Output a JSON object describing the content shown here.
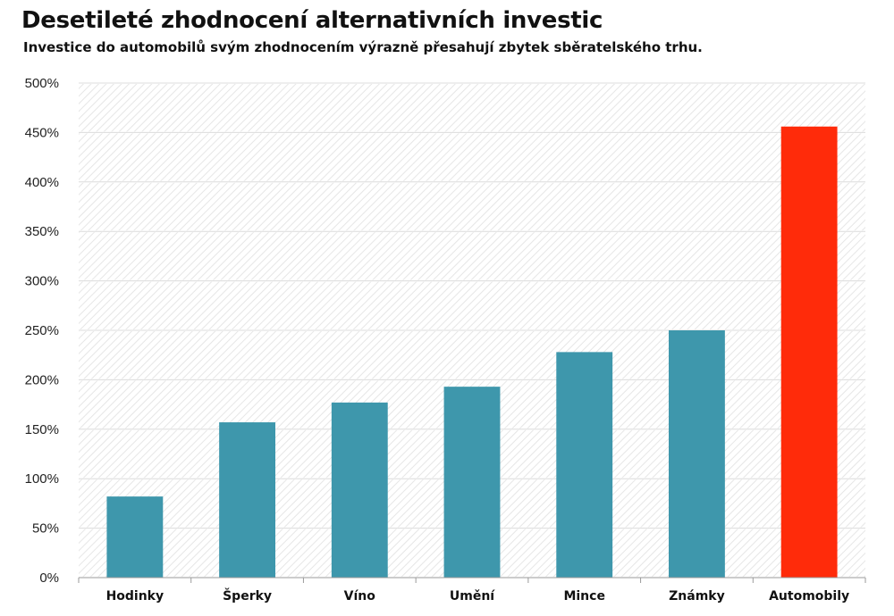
{
  "chart_data": {
    "type": "bar",
    "title": "Desetileté zhodnocení alternativních investic",
    "subtitle": "Investice do automobilů svým zhodnocením výrazně přesahují zbytek sběratelského trhu.",
    "categories": [
      "Hodinky",
      "Šperky",
      "Víno",
      "Umění",
      "Mince",
      "Známky",
      "Automobily"
    ],
    "values": [
      82,
      157,
      177,
      193,
      228,
      250,
      456
    ],
    "colors": [
      "#3e97ac",
      "#3e97ac",
      "#3e97ac",
      "#3e97ac",
      "#3e97ac",
      "#3e97ac",
      "#ff2b0a"
    ],
    "ylim": [
      0,
      500
    ],
    "yticks": [
      "0%",
      "50%",
      "100%",
      "150%",
      "200%",
      "250%",
      "300%",
      "350%",
      "400%",
      "450%",
      "500%"
    ],
    "xlabel": "",
    "ylabel": "",
    "grid": true,
    "legend": "none"
  }
}
